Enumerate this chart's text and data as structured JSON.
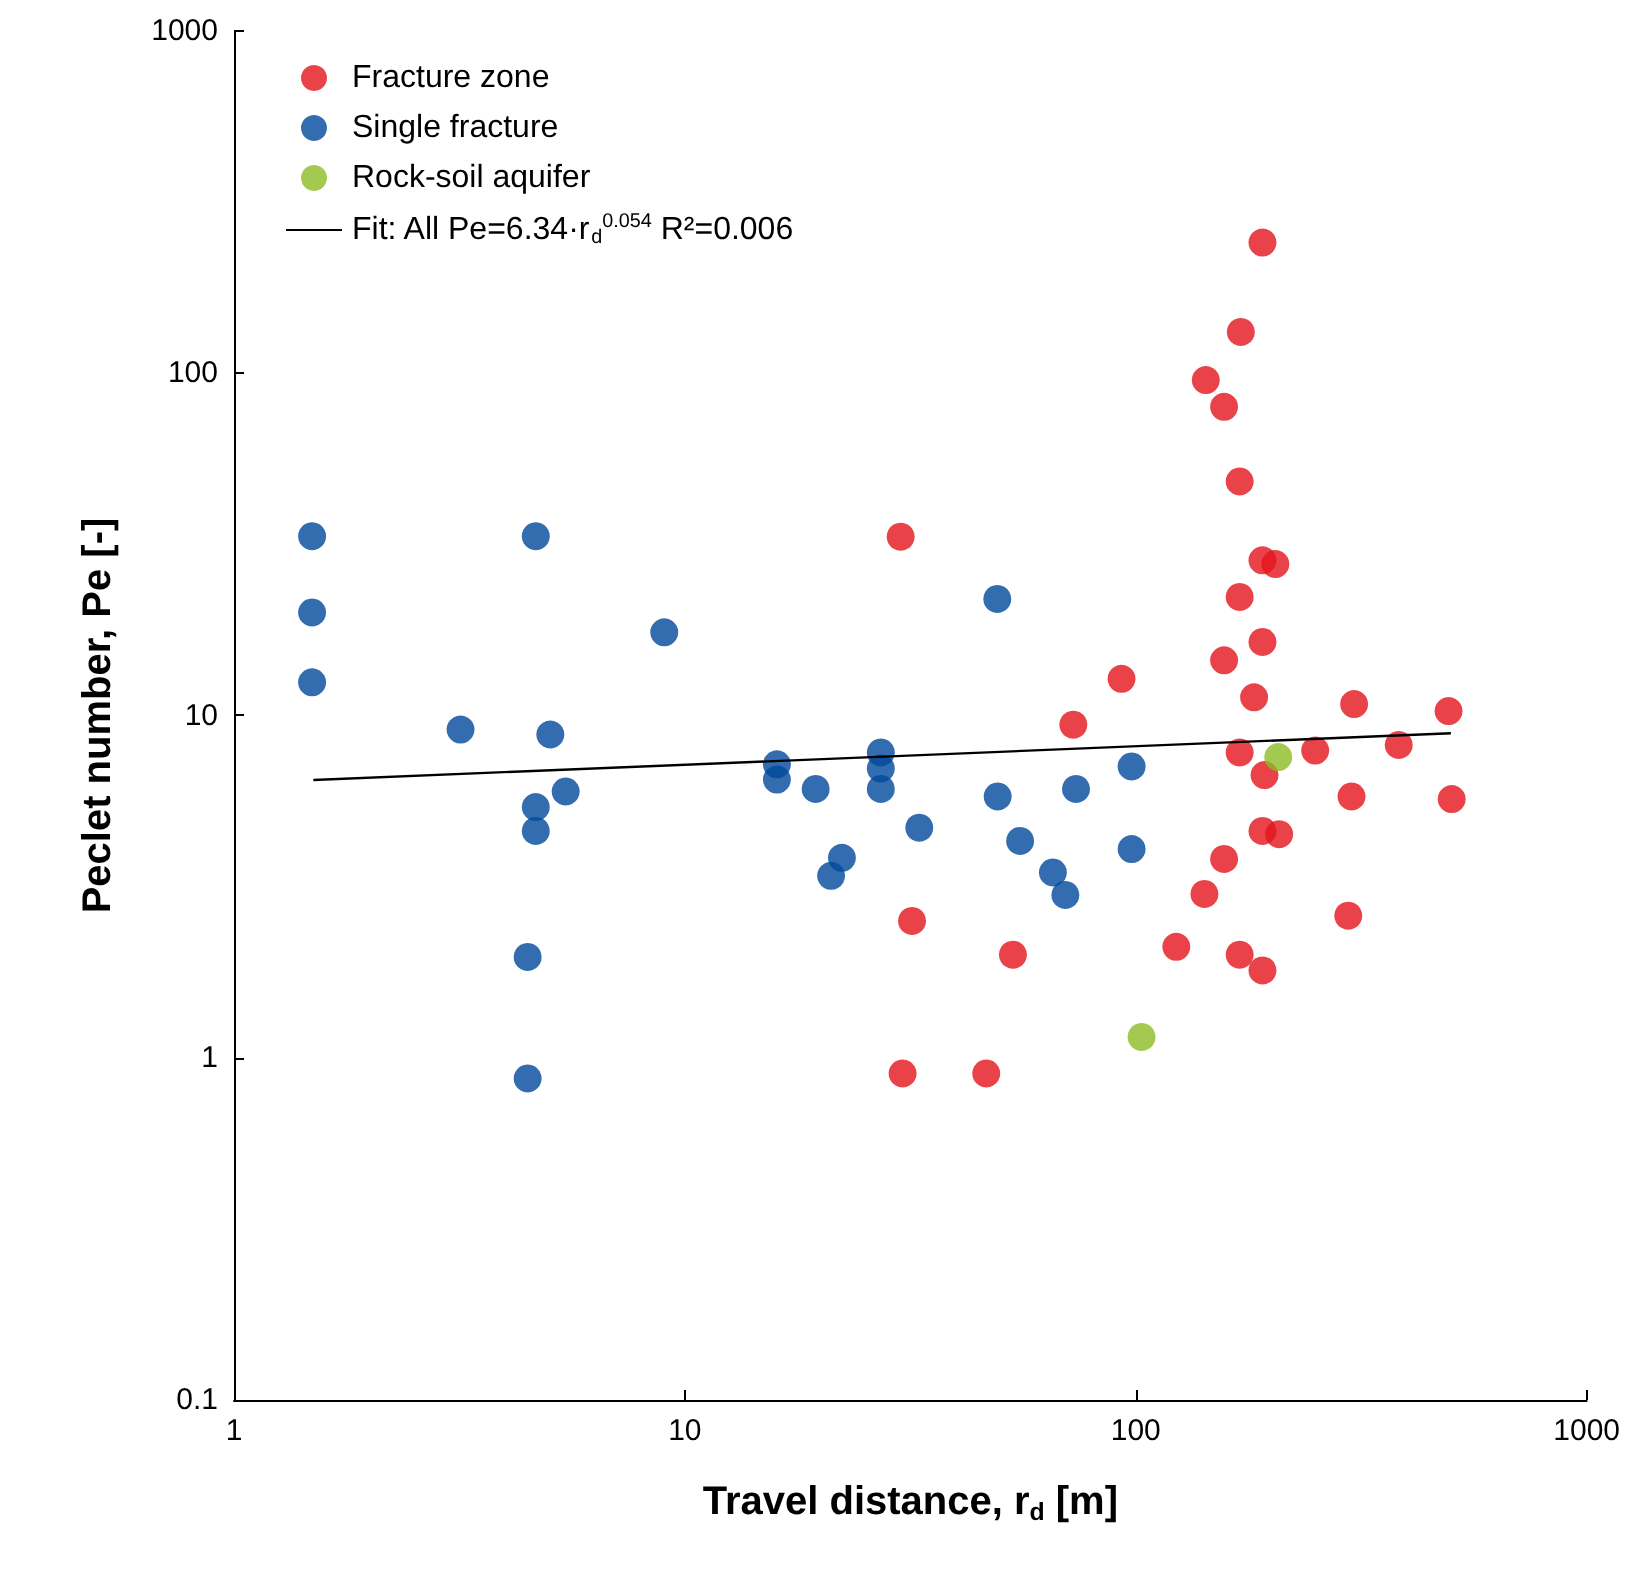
{
  "chart_data": {
    "type": "scatter",
    "xlabel": "Travel distance, r$_{d}$ [m]",
    "ylabel": "Peclet number, Pe [-]",
    "log": "xy",
    "xlim": [
      1,
      1000
    ],
    "ylim": [
      0.1,
      1000
    ],
    "xticks": [
      1,
      10,
      100,
      1000
    ],
    "yticks": [
      0.1,
      1,
      10,
      100,
      1000
    ],
    "grid": false,
    "legend": "top left",
    "marker": "circle",
    "series": [
      {
        "name": "Fracture zone",
        "color": "#e3141b",
        "x": [
          191,
          171,
          143,
          157,
          170,
          30.1,
          191,
          204,
          170,
          191,
          157,
          93,
          183,
          305,
          494,
          72.7,
          383,
          170,
          250,
          193,
          301,
          502,
          191,
          208,
          157,
          142,
          31.9,
          53.4,
          123,
          170,
          191,
          296,
          30.4,
          46.6
        ],
        "values": [
          241,
          132,
          95.5,
          79.8,
          48.3,
          33.3,
          28.4,
          27.7,
          22.2,
          16.4,
          14.5,
          12.8,
          11.3,
          10.8,
          10.3,
          9.4,
          8.2,
          7.8,
          7.9,
          6.7,
          5.8,
          5.7,
          4.6,
          4.5,
          3.81,
          3.01,
          2.51,
          2.0,
          2.11,
          2.0,
          1.8,
          2.6,
          0.9,
          0.9
        ]
      },
      {
        "name": "Single fracture",
        "color": "#00489b",
        "x": [
          1.49,
          1.49,
          1.49,
          3.18,
          4.67,
          5.03,
          9.0,
          5.44,
          4.67,
          4.67,
          4.48,
          4.48,
          16.0,
          16.0,
          19.5,
          22.3,
          21.1,
          27.2,
          27.2,
          27.2,
          49.3,
          33.1,
          49.4,
          55.4,
          73.7,
          65.5,
          69.8,
          97.9,
          97.9
        ],
        "values": [
          33.4,
          20,
          12.5,
          9.1,
          33.4,
          8.8,
          17.5,
          6.0,
          5.4,
          4.6,
          1.97,
          0.87,
          7.2,
          6.5,
          6.1,
          3.84,
          3.4,
          7.8,
          7.0,
          6.1,
          21.9,
          4.7,
          5.8,
          4.3,
          6.1,
          3.48,
          2.99,
          7.1,
          4.07
        ]
      },
      {
        "name": "Rock-soil aquifer",
        "color": "#8cbb26",
        "x": [
          207,
          103
        ],
        "values": [
          7.56,
          1.15
        ]
      },
      {
        "name": "Fit: All Pe=6.34·r$_{d}$$^{0.054}$ R²=0.006",
        "type": "line",
        "color": "#000000",
        "marker": "none",
        "line_style": "solid",
        "x": [
          1.5,
          500
        ],
        "values": [
          6.48,
          8.87
        ]
      }
    ]
  }
}
